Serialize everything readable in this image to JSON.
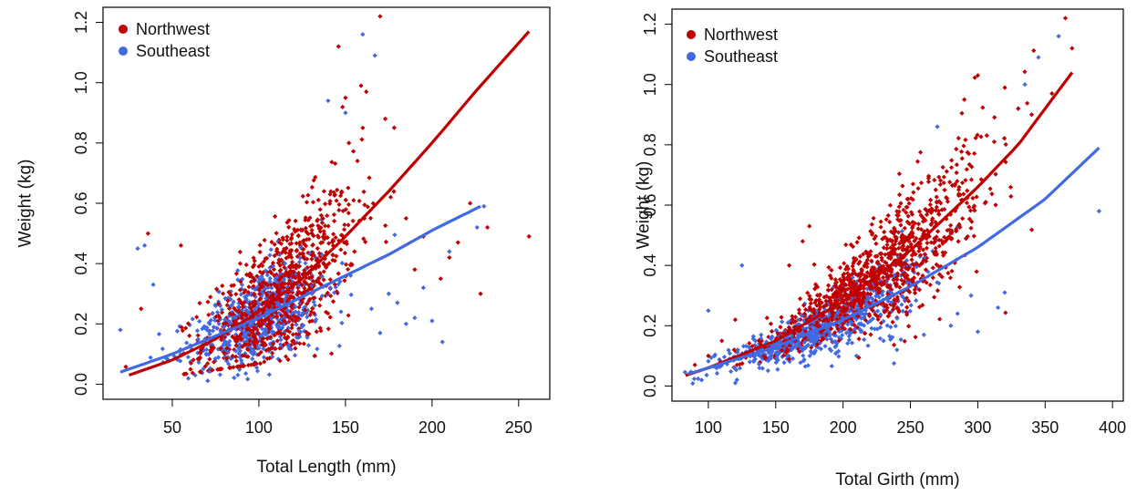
{
  "colors": {
    "Northwest": "#c00000",
    "Southeast": "#4169e1"
  },
  "chart_data": [
    {
      "type": "scatter",
      "title": "",
      "xlabel": "Total Length (mm)",
      "ylabel": "Weight (kg)",
      "xlim": [
        10,
        268
      ],
      "ylim": [
        -0.05,
        1.25
      ],
      "xticks": [
        50,
        100,
        150,
        200,
        250
      ],
      "yticks": [
        0.0,
        0.2,
        0.4,
        0.6,
        0.8,
        1.0,
        1.2
      ],
      "ytick_labels": [
        "0.0",
        "0.2",
        "0.4",
        "0.6",
        "0.8",
        "1.0",
        "1.2"
      ],
      "grid": false,
      "legend_position": "top-left",
      "series": [
        {
          "name": "Northwest",
          "fit_curve": [
            [
              25,
              0.03
            ],
            [
              50,
              0.08
            ],
            [
              75,
              0.15
            ],
            [
              100,
              0.24
            ],
            [
              125,
              0.35
            ],
            [
              150,
              0.49
            ],
            [
              175,
              0.64
            ],
            [
              200,
              0.8
            ],
            [
              225,
              0.97
            ],
            [
              256,
              1.17
            ]
          ],
          "point_cloud": {
            "x_center": 112,
            "x_spread": 22,
            "y_at_center": 0.33,
            "y_spread": 0.11,
            "count": 900
          },
          "extra_points": [
            [
              170,
              1.22
            ],
            [
              146,
              1.12
            ],
            [
              159,
              0.99
            ],
            [
              162,
              0.97
            ],
            [
              173,
              0.88
            ],
            [
              228,
              0.3
            ],
            [
              256,
              0.49
            ],
            [
              232,
              0.52
            ],
            [
              222,
              0.6
            ],
            [
              205,
              0.35
            ],
            [
              190,
              0.38
            ],
            [
              210,
              0.42
            ],
            [
              185,
              0.55
            ],
            [
              195,
              0.49
            ],
            [
              215,
              0.47
            ],
            [
              32,
              0.25
            ],
            [
              36,
              0.5
            ],
            [
              55,
              0.46
            ],
            [
              160,
              0.85
            ],
            [
              150,
              0.95
            ],
            [
              152,
              0.8
            ]
          ]
        },
        {
          "name": "Southeast",
          "fit_curve": [
            [
              20,
              0.04
            ],
            [
              50,
              0.1
            ],
            [
              75,
              0.16
            ],
            [
              100,
              0.22
            ],
            [
              125,
              0.29
            ],
            [
              150,
              0.36
            ],
            [
              175,
              0.43
            ],
            [
              200,
              0.51
            ],
            [
              228,
              0.59
            ]
          ],
          "point_cloud": {
            "x_center": 100,
            "x_spread": 20,
            "y_at_center": 0.22,
            "y_spread": 0.08,
            "count": 600
          },
          "extra_points": [
            [
              20,
              0.18
            ],
            [
              34,
              0.46
            ],
            [
              39,
              0.33
            ],
            [
              30,
              0.45
            ],
            [
              160,
              1.16
            ],
            [
              167,
              1.09
            ],
            [
              140,
              0.94
            ],
            [
              150,
              0.9
            ],
            [
              230,
              0.59
            ],
            [
              226,
              0.52
            ],
            [
              200,
              0.21
            ],
            [
              206,
              0.14
            ],
            [
              190,
              0.22
            ],
            [
              180,
              0.27
            ],
            [
              185,
              0.2
            ],
            [
              170,
              0.17
            ],
            [
              175,
              0.3
            ],
            [
              195,
              0.32
            ],
            [
              210,
              0.44
            ],
            [
              165,
              0.25
            ]
          ]
        }
      ]
    },
    {
      "type": "scatter",
      "title": "",
      "xlabel": "Total Girth (mm)",
      "ylabel": "Weight (kg)",
      "xlim": [
        73,
        408
      ],
      "ylim": [
        -0.05,
        1.25
      ],
      "xticks": [
        100,
        150,
        200,
        250,
        300,
        350,
        400
      ],
      "yticks": [
        0.0,
        0.2,
        0.4,
        0.6,
        0.8,
        1.0,
        1.2
      ],
      "ytick_labels": [
        "0.0",
        "0.2",
        "0.4",
        "0.6",
        "0.8",
        "1.0",
        "1.2"
      ],
      "grid": false,
      "legend_position": "top-left",
      "series": [
        {
          "name": "Northwest",
          "fit_curve": [
            [
              83,
              0.035
            ],
            [
              100,
              0.06
            ],
            [
              150,
              0.15
            ],
            [
              200,
              0.28
            ],
            [
              250,
              0.45
            ],
            [
              300,
              0.66
            ],
            [
              330,
              0.8
            ],
            [
              350,
              0.92
            ],
            [
              370,
              1.04
            ]
          ],
          "point_cloud": {
            "x_center": 225,
            "x_spread": 40,
            "count": 1100
          },
          "extra_points": [
            [
              365,
              1.22
            ],
            [
              370,
              1.12
            ],
            [
              355,
              0.97
            ],
            [
              340,
              0.9
            ],
            [
              300,
              1.03
            ],
            [
              290,
              0.95
            ],
            [
              330,
              0.92
            ],
            [
              110,
              0.15
            ],
            [
              100,
              0.1
            ],
            [
              90,
              0.07
            ],
            [
              120,
              0.22
            ],
            [
              175,
              0.53
            ],
            [
              170,
              0.48
            ],
            [
              160,
              0.4
            ]
          ]
        },
        {
          "name": "Southeast",
          "fit_curve": [
            [
              85,
              0.04
            ],
            [
              100,
              0.06
            ],
            [
              150,
              0.13
            ],
            [
              200,
              0.22
            ],
            [
              250,
              0.33
            ],
            [
              300,
              0.46
            ],
            [
              350,
              0.62
            ],
            [
              390,
              0.79
            ]
          ],
          "point_cloud": {
            "x_center": 180,
            "x_spread": 35,
            "count": 700
          },
          "extra_points": [
            [
              390,
              0.58
            ],
            [
              360,
              1.16
            ],
            [
              345,
              1.09
            ],
            [
              335,
              1.0
            ],
            [
              295,
              0.3
            ],
            [
              320,
              0.31
            ],
            [
              315,
              0.26
            ],
            [
              300,
              0.18
            ],
            [
              280,
              0.2
            ],
            [
              260,
              0.17
            ],
            [
              240,
              0.12
            ],
            [
              230,
              0.15
            ],
            [
              210,
              0.1
            ],
            [
              285,
              0.24
            ],
            [
              270,
              0.86
            ],
            [
              125,
              0.4
            ],
            [
              100,
              0.25
            ],
            [
              95,
              0.02
            ],
            [
              120,
              0.01
            ]
          ]
        }
      ]
    }
  ]
}
